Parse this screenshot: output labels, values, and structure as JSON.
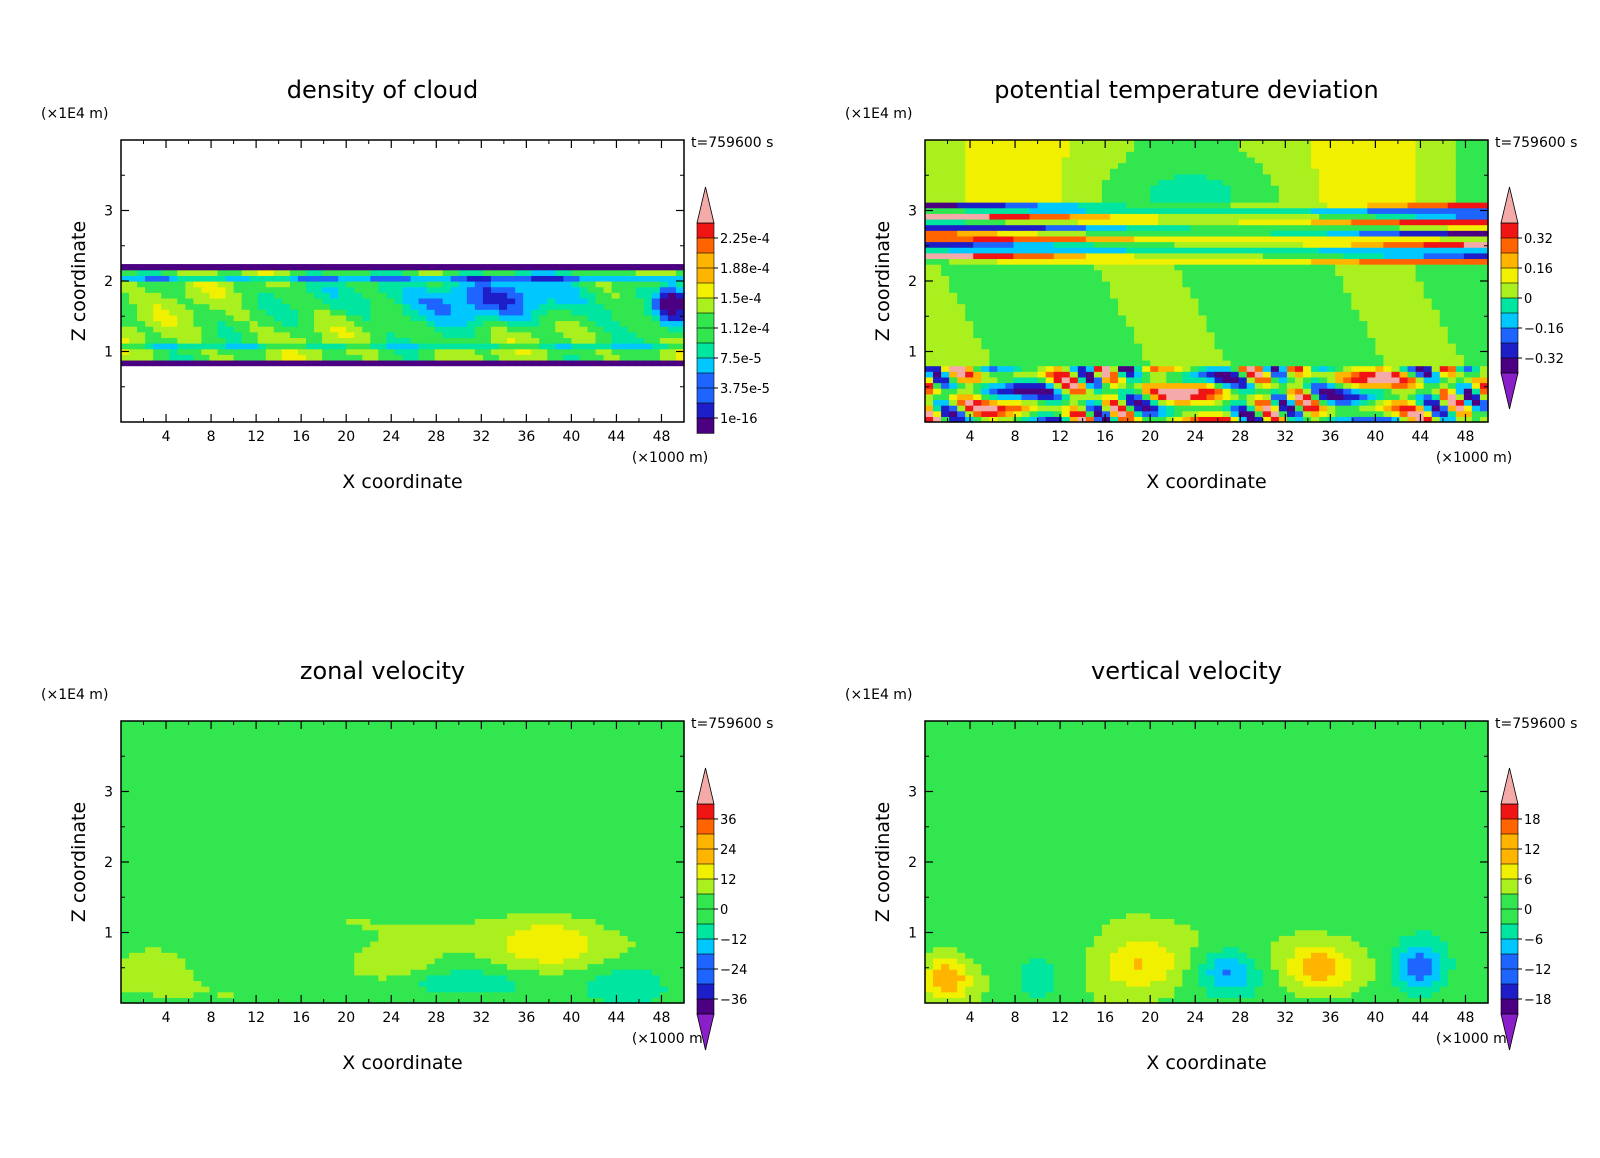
{
  "chart_data": [
    {
      "type": "heatmap",
      "title": "density of cloud",
      "xlabel": "X coordinate",
      "ylabel": "Z coordinate",
      "x_units": "(×1000 m)",
      "y_units": "(×1E4 m)",
      "time_label": "t=759600 s",
      "xlim": [
        0,
        50
      ],
      "ylim": [
        0,
        4
      ],
      "x_ticks": [
        "4",
        "8",
        "12",
        "16",
        "20",
        "24",
        "28",
        "32",
        "36",
        "40",
        "44",
        "48"
      ],
      "y_ticks": [
        "1",
        "2",
        "3"
      ],
      "colorbar_labels": [
        "2.25e-4",
        "1.88e-4",
        "1.5e-4",
        "1.12e-4",
        "7.5e-5",
        "3.75e-5",
        "1e-16"
      ],
      "colorbar_values": [
        0.000225,
        0.000188,
        0.00015,
        0.000112,
        7.5e-05,
        3.75e-05,
        1e-16
      ],
      "colorbar_lower_arrow": false,
      "field": "cloud",
      "colors": [
        "#4b0082",
        "#1e1ec8",
        "#1e64ff",
        "#00c8ff",
        "#00e6a0",
        "#32e650",
        "#aaf01e",
        "#f0f000",
        "#ffb400",
        "#ff6400",
        "#f01414",
        "#f5aaaa"
      ]
    },
    {
      "type": "heatmap",
      "title": "potential temperature deviation",
      "xlabel": "X coordinate",
      "ylabel": "Z coordinate",
      "x_units": "(×1000 m)",
      "y_units": "(×1E4 m)",
      "time_label": "t=759600 s",
      "xlim": [
        0,
        50
      ],
      "ylim": [
        0,
        4
      ],
      "x_ticks": [
        "4",
        "8",
        "12",
        "16",
        "20",
        "24",
        "28",
        "32",
        "36",
        "40",
        "44",
        "48"
      ],
      "y_ticks": [
        "1",
        "2",
        "3"
      ],
      "colorbar_labels": [
        "0.32",
        "0.16",
        "0",
        "−0.16",
        "−0.32"
      ],
      "colorbar_values": [
        0.32,
        0.16,
        0,
        -0.16,
        -0.32
      ],
      "colorbar_lower_arrow": true,
      "field": "theta",
      "colors": [
        "#4b0082",
        "#1e1ec8",
        "#1e64ff",
        "#00c8ff",
        "#00e6a0",
        "#32e650",
        "#aaf01e",
        "#f0f000",
        "#ffb400",
        "#ff6400",
        "#f01414",
        "#f5aaaa"
      ]
    },
    {
      "type": "heatmap",
      "title": "zonal velocity",
      "xlabel": "X coordinate",
      "ylabel": "Z coordinate",
      "x_units": "(×1000 m)",
      "y_units": "(×1E4 m)",
      "time_label": "t=759600 s",
      "xlim": [
        0,
        50
      ],
      "ylim": [
        0,
        4
      ],
      "x_ticks": [
        "4",
        "8",
        "12",
        "16",
        "20",
        "24",
        "28",
        "32",
        "36",
        "40",
        "44",
        "48"
      ],
      "y_ticks": [
        "1",
        "2",
        "3"
      ],
      "colorbar_labels": [
        "36",
        "24",
        "12",
        "0",
        "−12",
        "−24",
        "−36"
      ],
      "colorbar_values": [
        36,
        24,
        12,
        0,
        -12,
        -24,
        -36
      ],
      "colorbar_lower_arrow": true,
      "field": "u",
      "colors": [
        "#4b0082",
        "#1e1ec8",
        "#1e64ff",
        "#00c8ff",
        "#00e6a0",
        "#32e650",
        "#aaf01e",
        "#f0f000",
        "#ffb400",
        "#ff6400",
        "#f01414",
        "#f5aaaa"
      ]
    },
    {
      "type": "heatmap",
      "title": "vertical velocity",
      "xlabel": "X coordinate",
      "ylabel": "Z coordinate",
      "x_units": "(×1000 m)",
      "y_units": "(×1E4 m)",
      "time_label": "t=759600 s",
      "xlim": [
        0,
        50
      ],
      "ylim": [
        0,
        4
      ],
      "x_ticks": [
        "4",
        "8",
        "12",
        "16",
        "20",
        "24",
        "28",
        "32",
        "36",
        "40",
        "44",
        "48"
      ],
      "y_ticks": [
        "1",
        "2",
        "3"
      ],
      "colorbar_labels": [
        "18",
        "12",
        "6",
        "0",
        "−6",
        "−12",
        "−18"
      ],
      "colorbar_values": [
        18,
        12,
        6,
        0,
        -6,
        -12,
        -18
      ],
      "colorbar_lower_arrow": true,
      "field": "w",
      "colors": [
        "#4b0082",
        "#1e1ec8",
        "#1e64ff",
        "#00c8ff",
        "#00e6a0",
        "#32e650",
        "#aaf01e",
        "#f0f000",
        "#ffb400",
        "#ff6400",
        "#f01414",
        "#f5aaaa"
      ]
    }
  ]
}
